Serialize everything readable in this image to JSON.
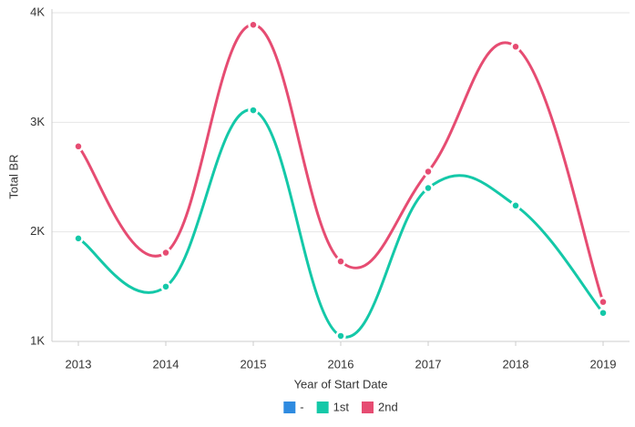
{
  "chart_data": {
    "type": "line",
    "x_label": "Year of Start Date",
    "y_label": "Total BR",
    "categories": [
      "2013",
      "2014",
      "2015",
      "2016",
      "2017",
      "2018",
      "2019"
    ],
    "series": [
      {
        "name": "-",
        "color": "#2f8be0",
        "values": [
          null,
          null,
          null,
          null,
          null,
          null,
          null
        ]
      },
      {
        "name": "1st",
        "color": "#14c8a8",
        "values": [
          1940,
          1500,
          3110,
          1050,
          2400,
          2240,
          1260
        ]
      },
      {
        "name": "2nd",
        "color": "#e64c72",
        "values": [
          2780,
          1810,
          3890,
          1730,
          2550,
          3690,
          1360
        ]
      }
    ],
    "ylim": [
      1000,
      4000
    ],
    "yticks": [
      {
        "value": 1000,
        "label": "1K"
      },
      {
        "value": 2000,
        "label": "2K"
      },
      {
        "value": 3000,
        "label": "3K"
      },
      {
        "value": 4000,
        "label": "4K"
      }
    ],
    "grid": true,
    "legend": "bottom"
  }
}
